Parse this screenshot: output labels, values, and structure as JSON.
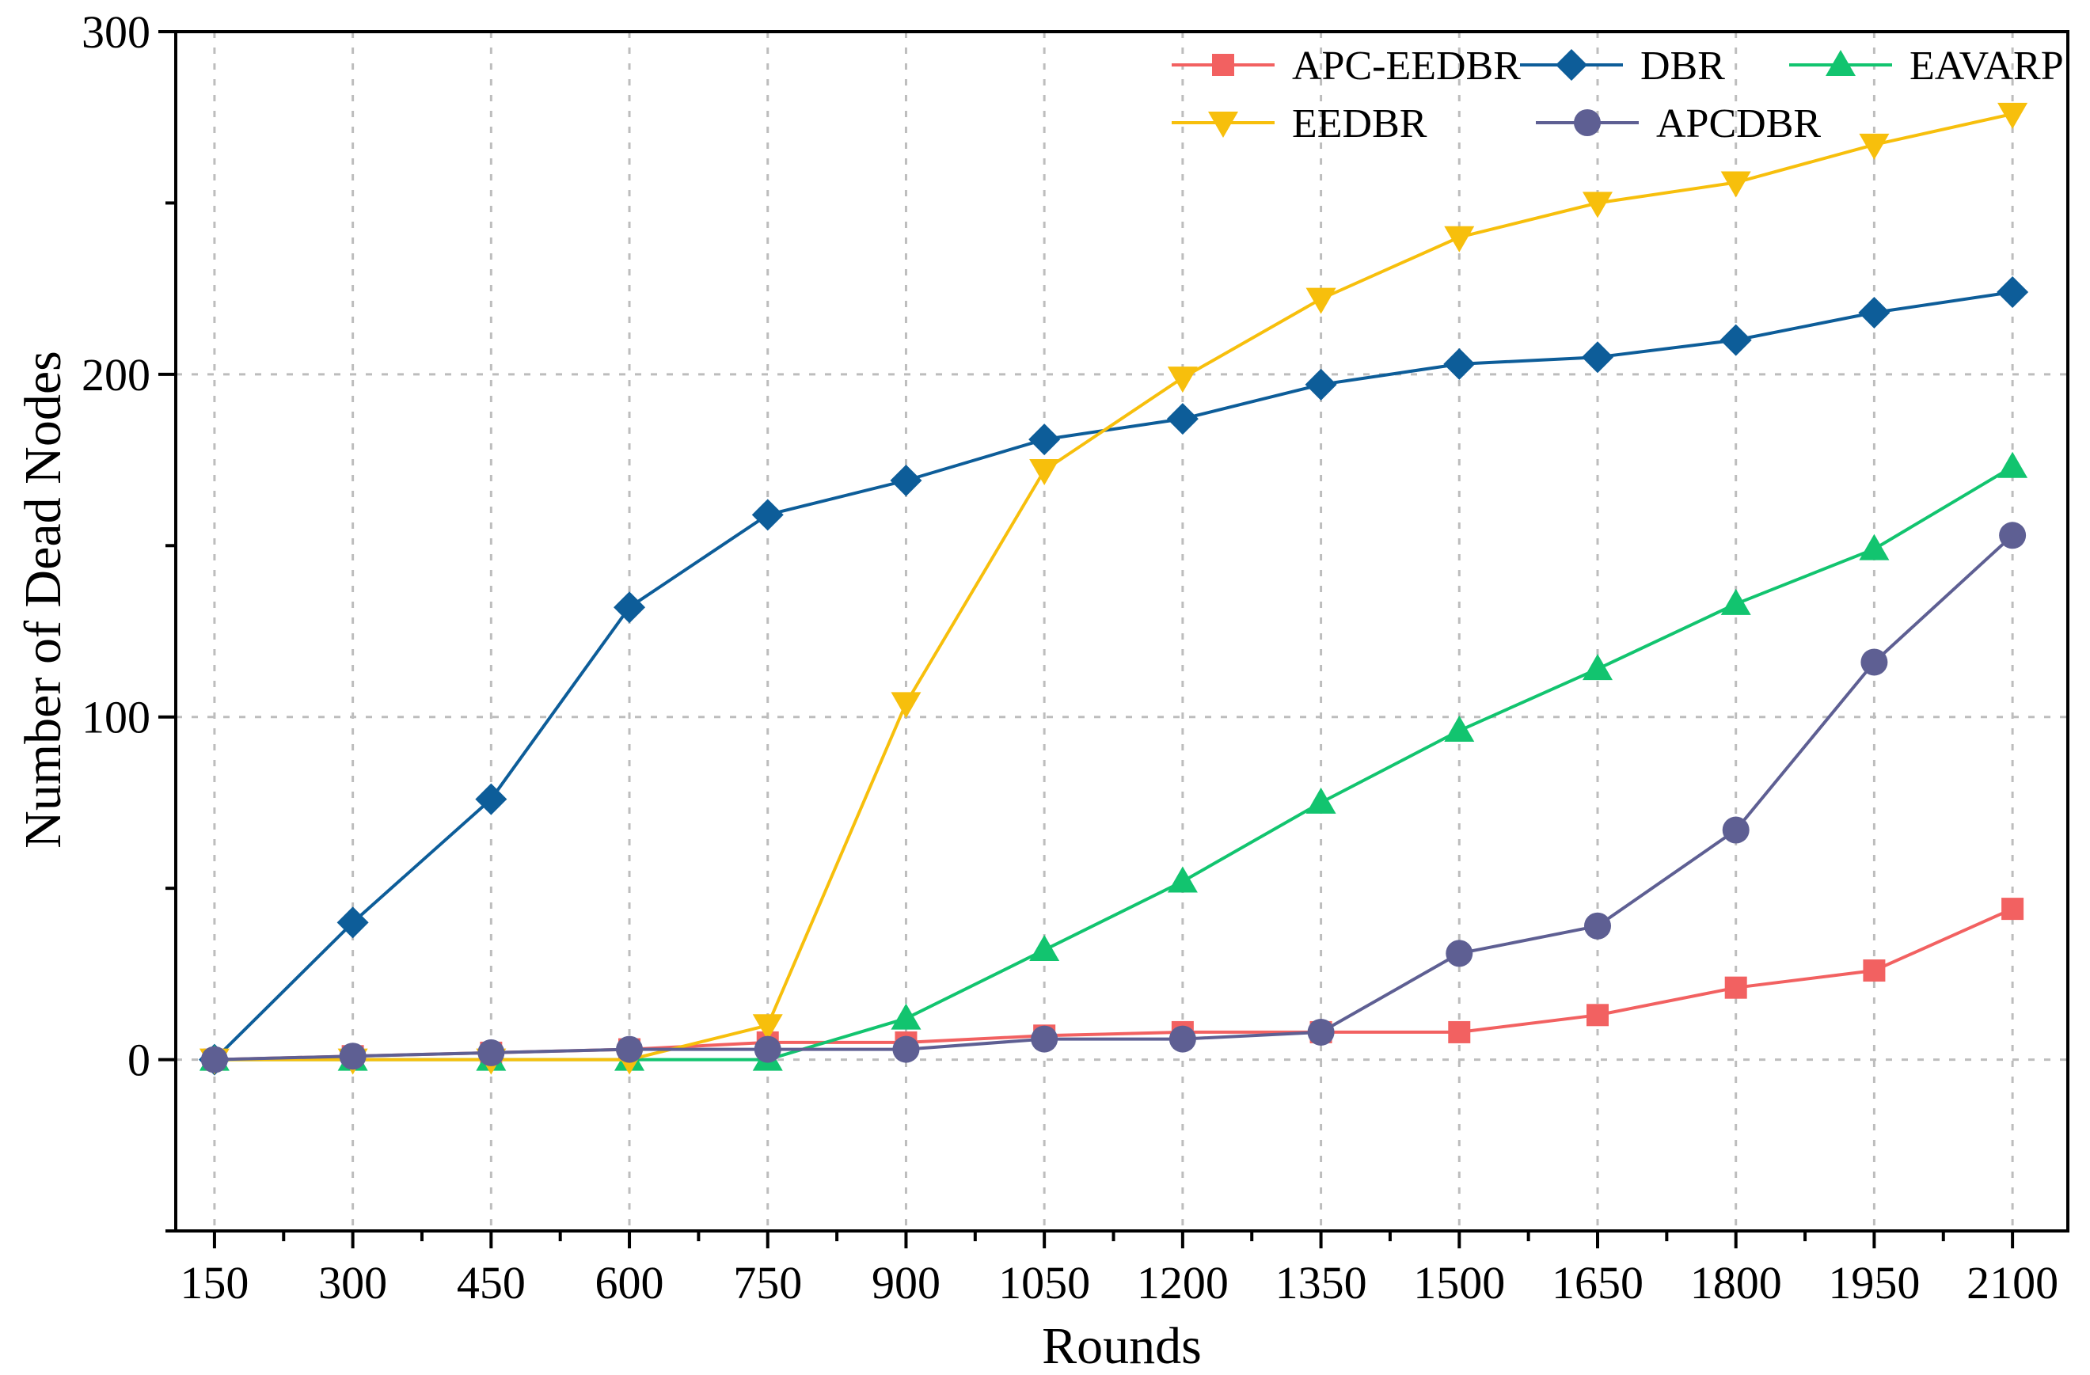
{
  "chart_data": {
    "type": "line",
    "title": "",
    "xlabel": "Rounds",
    "ylabel": "Number of Dead Nodes",
    "x": [
      150,
      300,
      450,
      600,
      750,
      900,
      1050,
      1200,
      1350,
      1500,
      1650,
      1800,
      1950,
      2100
    ],
    "x_tick_labels": [
      "150",
      "300",
      "450",
      "600",
      "750",
      "900",
      "1050",
      "1200",
      "1350",
      "1500",
      "1650",
      "1800",
      "1950",
      "2100"
    ],
    "xlim": [
      108,
      2160
    ],
    "ylim": [
      -50,
      300
    ],
    "y_ticks": [
      0,
      100,
      200,
      300
    ],
    "y_tick_labels": [
      "0",
      "100",
      "200",
      "300"
    ],
    "grid": true,
    "legend_position": "top-right",
    "series": [
      {
        "name": "APC-EEDBR",
        "color": "#f26161",
        "marker": "square",
        "values": [
          0,
          1,
          2,
          3,
          5,
          5,
          7,
          8,
          8,
          8,
          13,
          21,
          26,
          44
        ]
      },
      {
        "name": "DBR",
        "color": "#0d5d99",
        "marker": "diamond",
        "values": [
          0,
          40,
          76,
          132,
          159,
          169,
          181,
          187,
          197,
          203,
          205,
          210,
          218,
          224
        ]
      },
      {
        "name": "EAVARP",
        "color": "#12c46f",
        "marker": "triangle-up",
        "values": [
          0,
          0,
          0,
          0,
          0,
          12,
          32,
          52,
          75,
          96,
          114,
          133,
          149,
          173
        ]
      },
      {
        "name": "EEDBR",
        "color": "#f7bf0c",
        "marker": "triangle-down",
        "values": [
          0,
          0,
          0,
          0,
          10,
          104,
          172,
          199,
          222,
          240,
          250,
          256,
          267,
          276
        ]
      },
      {
        "name": "APCDBR",
        "color": "#5e5f93",
        "marker": "circle",
        "values": [
          0,
          1,
          2,
          3,
          3,
          3,
          6,
          6,
          8,
          31,
          39,
          67,
          116,
          153
        ]
      }
    ]
  }
}
